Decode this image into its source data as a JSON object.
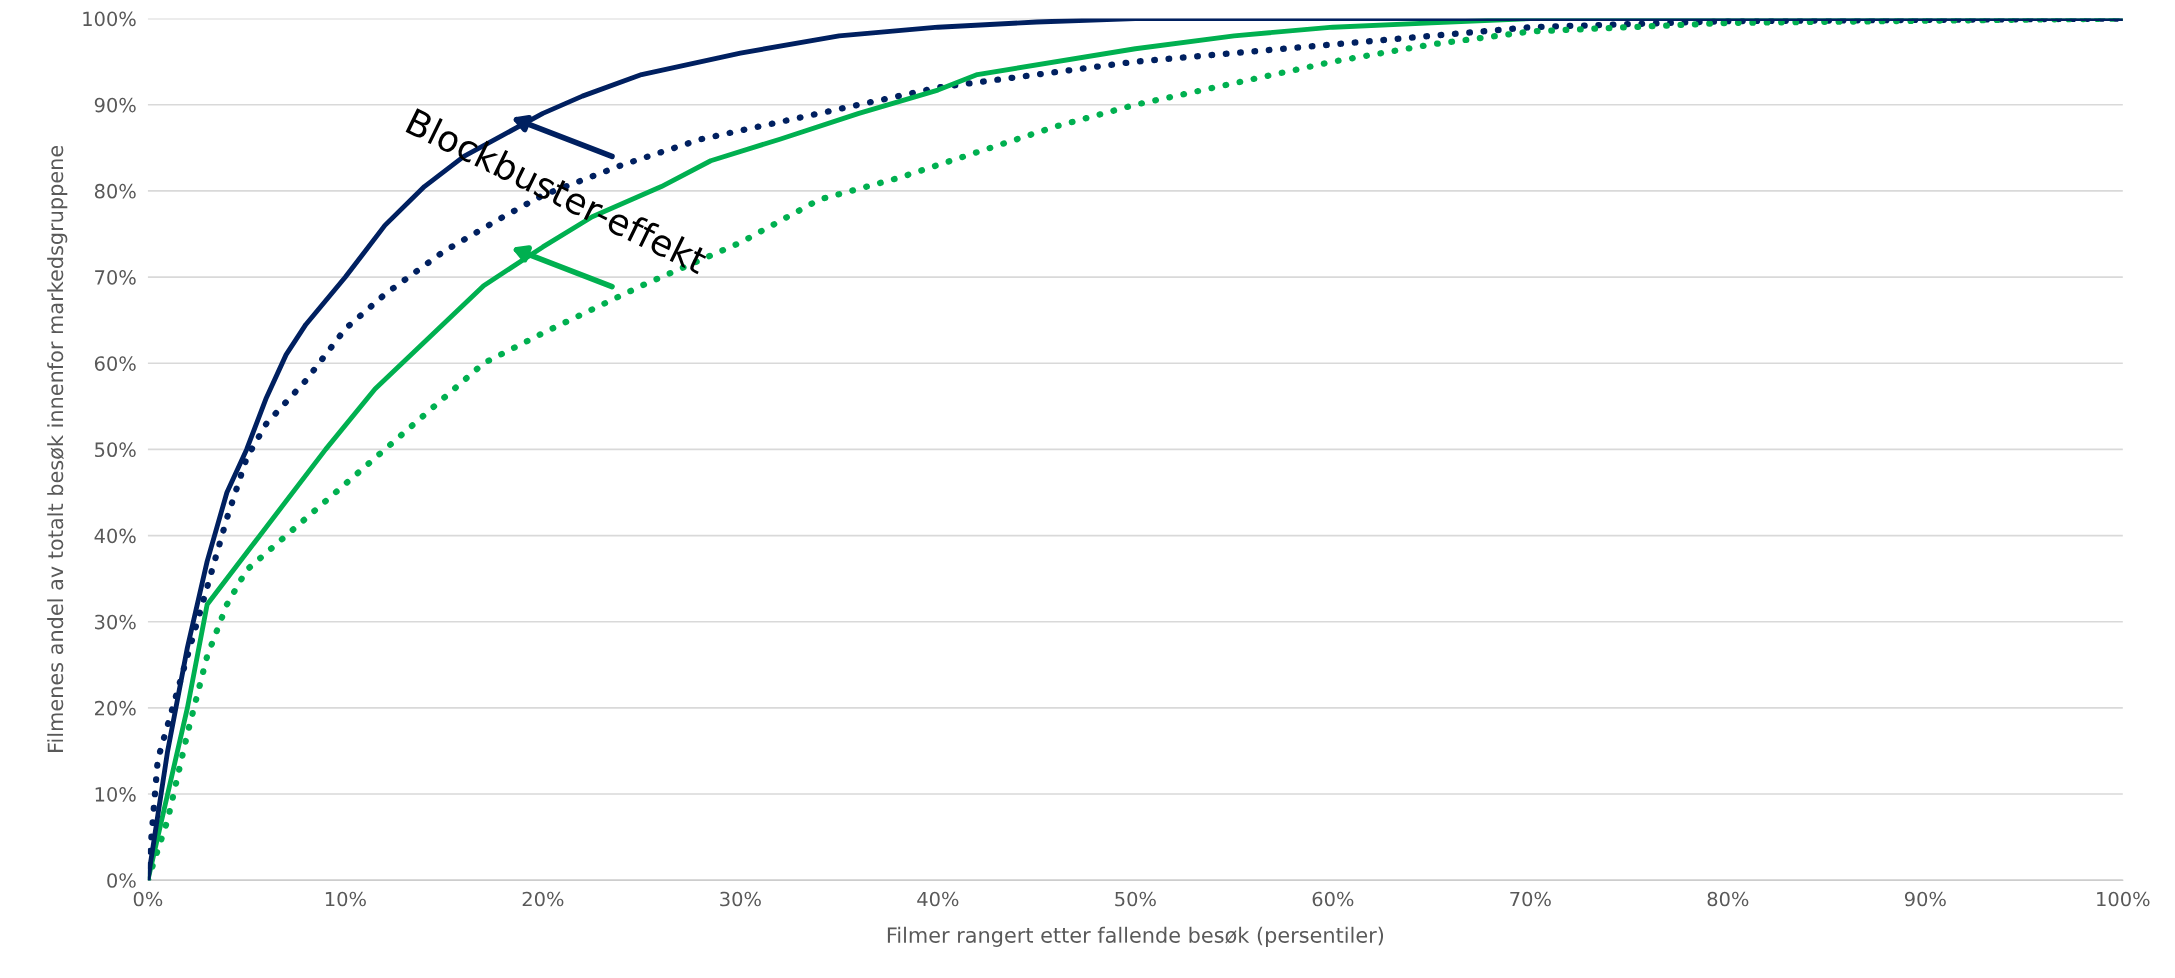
{
  "chart_data": {
    "type": "line",
    "xlabel": "Filmer rangert etter fallende besøk (persentiler)",
    "ylabel": "Filmenes andel av totalt besøk innenfor markedsgruppene",
    "xlim": [
      0,
      100
    ],
    "ylim": [
      0,
      100
    ],
    "xticks": [
      {
        "value": 0,
        "label": "0%"
      },
      {
        "value": 10,
        "label": "10%"
      },
      {
        "value": 20,
        "label": "20%"
      },
      {
        "value": 30,
        "label": "30%"
      },
      {
        "value": 40,
        "label": "40%"
      },
      {
        "value": 50,
        "label": "50%"
      },
      {
        "value": 60,
        "label": "60%"
      },
      {
        "value": 70,
        "label": "70%"
      },
      {
        "value": 80,
        "label": "80%"
      },
      {
        "value": 90,
        "label": "90%"
      },
      {
        "value": 100,
        "label": "100%"
      }
    ],
    "yticks": [
      {
        "value": 0,
        "label": "0%"
      },
      {
        "value": 10,
        "label": "10%"
      },
      {
        "value": 20,
        "label": "20%"
      },
      {
        "value": 30,
        "label": "30%"
      },
      {
        "value": 40,
        "label": "40%"
      },
      {
        "value": 50,
        "label": "50%"
      },
      {
        "value": 60,
        "label": "60%"
      },
      {
        "value": 70,
        "label": "70%"
      },
      {
        "value": 80,
        "label": "80%"
      },
      {
        "value": 90,
        "label": "90%"
      },
      {
        "value": 100,
        "label": "100%"
      }
    ],
    "grid": "y",
    "marker": "none",
    "annotations": [
      {
        "text": "Blockbuster-effekt",
        "x": 20.6,
        "y": 79.7
      }
    ],
    "series": [
      {
        "color": "#002060",
        "line_style": "dotted",
        "x": [
          0,
          0.5,
          1,
          2,
          3,
          4,
          5,
          6,
          8,
          10,
          12,
          15,
          18,
          20,
          24,
          28,
          32,
          36,
          40,
          45,
          50,
          55,
          60,
          65,
          70,
          80,
          100
        ],
        "values": [
          0,
          14,
          18,
          26,
          34,
          42,
          49,
          53,
          58,
          64,
          68,
          73,
          77,
          79.5,
          83,
          86,
          88,
          90,
          92,
          93.5,
          95,
          96,
          97,
          98,
          99,
          99.7,
          100
        ]
      },
      {
        "color": "#00b050",
        "line_style": "dotted",
        "x": [
          0,
          1,
          2,
          3,
          4,
          5,
          7,
          10,
          13,
          17,
          20,
          25,
          30,
          34,
          38,
          42,
          46,
          50,
          55,
          60,
          65,
          70,
          80,
          100
        ],
        "values": [
          0,
          7,
          17,
          26,
          32,
          36,
          40,
          46,
          52,
          60,
          63.5,
          69,
          74,
          79,
          81.5,
          84.5,
          87.5,
          90,
          92.5,
          95,
          97,
          98.5,
          99.5,
          100
        ]
      },
      {
        "color": "#00b050",
        "line_style": "solid",
        "x": [
          0,
          1,
          2,
          3,
          5,
          9,
          11.5,
          17,
          20,
          22.5,
          26,
          28.5,
          32,
          36,
          40,
          42,
          50,
          55,
          60,
          65,
          70,
          100
        ],
        "values": [
          0,
          10,
          20,
          32,
          38,
          50,
          57,
          69,
          73.5,
          77,
          80.5,
          83.5,
          86,
          89,
          91.7,
          93.5,
          96.5,
          98,
          99,
          99.5,
          100,
          100
        ]
      },
      {
        "color": "#002060",
        "line_style": "solid",
        "x": [
          0,
          1,
          2,
          3,
          4,
          5,
          6,
          7,
          8,
          10,
          12,
          14,
          16,
          18,
          20,
          22,
          25,
          30,
          35,
          40,
          45,
          50,
          100
        ],
        "values": [
          0,
          15,
          27,
          37,
          45,
          50,
          56,
          61,
          64.5,
          70,
          76,
          80.5,
          84,
          86.5,
          89,
          91,
          93.5,
          96,
          98,
          99,
          99.6,
          100,
          100
        ]
      }
    ]
  }
}
